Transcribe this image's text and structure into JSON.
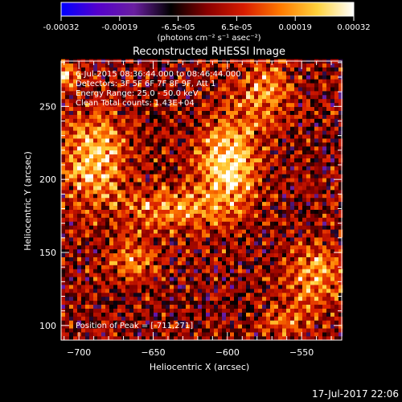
{
  "chart_data": {
    "type": "heatmap",
    "title": "Reconstructed RHESSI Image",
    "xlabel": "Heliocentric X (arcsec)",
    "ylabel": "Heliocentric Y (arcsec)",
    "xlim": [
      -712,
      -523
    ],
    "ylim": [
      90,
      281
    ],
    "x_ticks": [
      -700,
      -650,
      -600,
      -550
    ],
    "y_ticks": [
      100,
      150,
      200,
      250
    ],
    "colorbar": {
      "label": "(photons cm⁻² s⁻¹ asec⁻²)",
      "range": [
        -0.00032,
        0.00032
      ],
      "tick_labels": [
        "-0.00032",
        "-0.00019",
        "-6.5e-05",
        "6.5e-05",
        "0.00019",
        "0.00032"
      ],
      "colors": [
        "#0000ff",
        "#5500cc",
        "#6a1fa0",
        "#000000",
        "#8a0000",
        "#d81c00",
        "#ff7a00",
        "#ffd23c",
        "#ffffff"
      ]
    },
    "annotations": [
      "6-Jul-2015 08:36:44.000 to 08:46:44.000",
      "Detectors: 3F 5F 6F 7F 8F 9F, Att 1",
      "Energy Range: 25.0 - 50.0 keV",
      "Clean     Total counts: 1.43E+04"
    ],
    "peak_label": "Position of Peak = [-711,271]",
    "peak": {
      "x": -711,
      "y": 271
    },
    "sources": [
      {
        "x": -600,
        "y": 210,
        "sx": 14,
        "sy": 22,
        "amp": 0.0003
      },
      {
        "x": -690,
        "y": 215,
        "sx": 14,
        "sy": 22,
        "amp": 0.00026
      },
      {
        "x": -711,
        "y": 271,
        "sx": 6,
        "sy": 6,
        "amp": 0.00032
      },
      {
        "x": -640,
        "y": 180,
        "sx": 22,
        "sy": 10,
        "amp": 0.00018
      },
      {
        "x": -540,
        "y": 135,
        "sx": 14,
        "sy": 14,
        "amp": 0.0002
      },
      {
        "x": -575,
        "y": 260,
        "sx": 12,
        "sy": 16,
        "amp": 0.00018
      },
      {
        "x": -665,
        "y": 145,
        "sx": 12,
        "sy": 10,
        "amp": 0.00016
      },
      {
        "x": -560,
        "y": 105,
        "sx": 12,
        "sy": 8,
        "amp": 0.00014
      }
    ]
  },
  "timestamp": "17-Jul-2017 22:06"
}
